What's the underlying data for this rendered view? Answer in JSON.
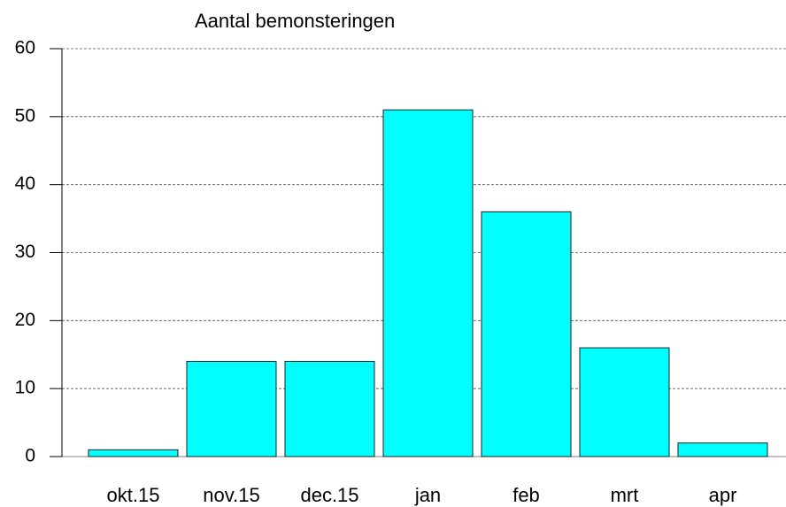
{
  "chart_data": {
    "type": "bar",
    "title": "Aantal bemonsteringen",
    "categories": [
      "okt.15",
      "nov.15",
      "dec.15",
      "jan",
      "feb",
      "mrt",
      "apr"
    ],
    "values": [
      1,
      14,
      14,
      51,
      36,
      16,
      2
    ],
    "color": "#00ffff",
    "ylim": [
      0,
      60
    ],
    "yticks": [
      0,
      10,
      20,
      30,
      40,
      50,
      60
    ],
    "grid": true
  }
}
